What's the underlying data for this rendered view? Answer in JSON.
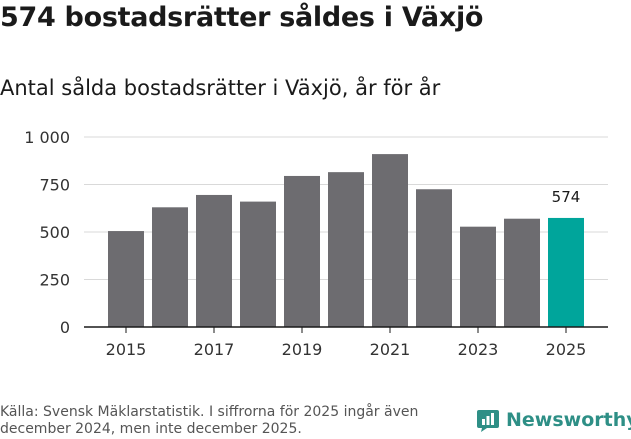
{
  "headline": "574 bostadsrätter såldes i Växjö",
  "subtitle": "Antal sålda bostadsrätter i Växjö, år för år",
  "footer": {
    "source": "Källa: Svensk Mäklarstatistik. I siffrorna för 2025 ingår även december 2024, men inte december 2025."
  },
  "brand": {
    "name": "Newsworthy",
    "icon": "newsworthy-logo-icon",
    "color": "#2e8f86"
  },
  "chart_data": {
    "type": "bar",
    "title": "Antal sålda bostadsrätter i Växjö, år för år",
    "xlabel": "",
    "ylabel": "",
    "categories": [
      "2015",
      "2016",
      "2017",
      "2018",
      "2019",
      "2020",
      "2021",
      "2022",
      "2023",
      "2024",
      "2025"
    ],
    "values": [
      505,
      630,
      695,
      660,
      795,
      815,
      910,
      725,
      528,
      570,
      574
    ],
    "x_tick_labels": [
      "2015",
      "2017",
      "2019",
      "2021",
      "2023",
      "2025"
    ],
    "y_ticks": [
      0,
      250,
      500,
      750,
      1000
    ],
    "y_tick_labels": [
      "0",
      "250",
      "500",
      "750",
      "1 000"
    ],
    "ylim": [
      0,
      1000
    ],
    "grid": true,
    "bar_color": "#6d6c70",
    "highlight_color": "#00a59b",
    "highlight_index": 10,
    "annotations": [
      {
        "category": "2025",
        "text": "574"
      }
    ]
  }
}
